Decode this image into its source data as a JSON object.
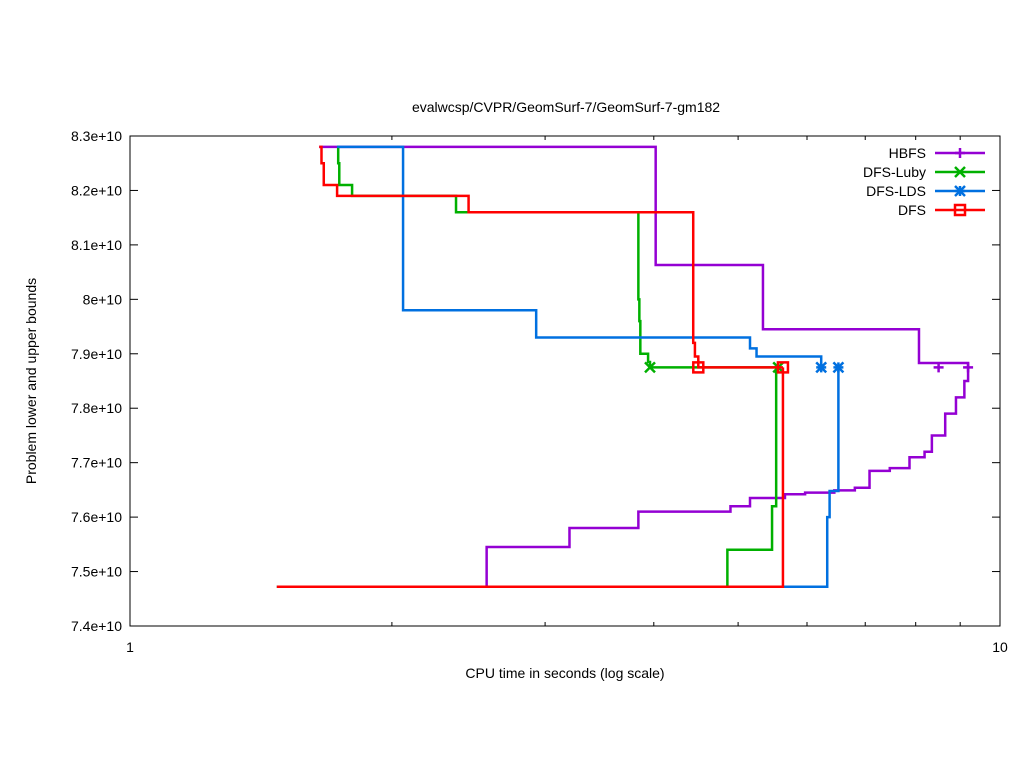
{
  "chart_data": {
    "type": "line",
    "title": "evalwcsp/CVPR/GeomSurf-7/GeomSurf-7-gm182",
    "xlabel": "CPU time in seconds (log scale)",
    "ylabel": "Problem lower and upper bounds",
    "xscale": "log",
    "xlim": [
      1,
      10
    ],
    "ylim": [
      74000000000.0,
      83000000000.0
    ],
    "xticks": [
      {
        "v": 1,
        "label": "1"
      },
      {
        "v": 10,
        "label": "10"
      }
    ],
    "yticks": [
      {
        "v": 74000000000.0,
        "label": "7.4e+10"
      },
      {
        "v": 75000000000.0,
        "label": "7.5e+10"
      },
      {
        "v": 76000000000.0,
        "label": "7.6e+10"
      },
      {
        "v": 77000000000.0,
        "label": "7.7e+10"
      },
      {
        "v": 78000000000.0,
        "label": "7.8e+10"
      },
      {
        "v": 79000000000.0,
        "label": "7.9e+10"
      },
      {
        "v": 80000000000.0,
        "label": "8e+10"
      },
      {
        "v": 81000000000.0,
        "label": "8.1e+10"
      },
      {
        "v": 82000000000.0,
        "label": "8.2e+10"
      },
      {
        "v": 83000000000.0,
        "label": "8.3e+10"
      }
    ],
    "grid": false,
    "legend_position": "top-right",
    "series": [
      {
        "name": "HBFS",
        "color": "#9400d3",
        "marker": "plus",
        "upper": [
          [
            1.65,
            82800000000.0
          ],
          [
            4.02,
            80630000000.0
          ],
          [
            5.34,
            79450000000.0
          ],
          [
            8.07,
            78830000000.0
          ],
          [
            9.19,
            78750000000.0
          ]
        ],
        "lower": [
          [
            2.57,
            74720000000.0
          ],
          [
            2.57,
            75450000000.0
          ],
          [
            3.2,
            75800000000.0
          ],
          [
            3.84,
            76100000000.0
          ],
          [
            4.9,
            76200000000.0
          ],
          [
            5.16,
            76350000000.0
          ],
          [
            5.66,
            76420000000.0
          ],
          [
            5.97,
            76450000000.0
          ],
          [
            6.45,
            76490000000.0
          ],
          [
            6.81,
            76540000000.0
          ],
          [
            7.08,
            76850000000.0
          ],
          [
            7.47,
            76900000000.0
          ],
          [
            7.87,
            77100000000.0
          ],
          [
            8.19,
            77200000000.0
          ],
          [
            8.35,
            77500000000.0
          ],
          [
            8.65,
            77900000000.0
          ],
          [
            8.9,
            78200000000.0
          ],
          [
            9.1,
            78500000000.0
          ],
          [
            9.19,
            78750000000.0
          ]
        ],
        "markers": [
          [
            8.5,
            78750000000.0
          ],
          [
            9.19,
            78750000000.0
          ]
        ]
      },
      {
        "name": "DFS-Luby",
        "color": "#00b000",
        "marker": "cross",
        "upper": [
          [
            1.73,
            82800000000.0
          ],
          [
            1.735,
            82500000000.0
          ],
          [
            1.74,
            82100000000.0
          ],
          [
            1.8,
            81900000000.0
          ],
          [
            2.37,
            81600000000.0
          ],
          [
            3.84,
            80000000000.0
          ],
          [
            3.85,
            79600000000.0
          ],
          [
            3.86,
            79000000000.0
          ],
          [
            3.94,
            78850000000.0
          ],
          [
            3.96,
            78750000000.0
          ],
          [
            5.53,
            78750000000.0
          ]
        ],
        "lower": [
          [
            1.475,
            74720000000.0
          ],
          [
            4.86,
            75400000000.0
          ],
          [
            5.47,
            76200000000.0
          ],
          [
            5.53,
            78750000000.0
          ]
        ],
        "markers": [
          [
            3.96,
            78750000000.0
          ],
          [
            5.56,
            78750000000.0
          ]
        ]
      },
      {
        "name": "DFS-LDS",
        "color": "#0070e0",
        "marker": "star",
        "upper": [
          [
            1.73,
            82800000000.0
          ],
          [
            2.06,
            79800000000.0
          ],
          [
            2.93,
            79300000000.0
          ],
          [
            5.16,
            79100000000.0
          ],
          [
            5.25,
            78950000000.0
          ],
          [
            6.23,
            78750000000.0
          ]
        ],
        "lower": [
          [
            1.475,
            74720000000.0
          ],
          [
            6.33,
            76000000000.0
          ],
          [
            6.37,
            76480000000.0
          ],
          [
            6.52,
            78750000000.0
          ]
        ],
        "markers": [
          [
            6.23,
            78750000000.0
          ],
          [
            6.52,
            78750000000.0
          ]
        ]
      },
      {
        "name": "DFS",
        "color": "#ff0000",
        "marker": "square",
        "upper": [
          [
            1.65,
            82800000000.0
          ],
          [
            1.66,
            82500000000.0
          ],
          [
            1.67,
            82100000000.0
          ],
          [
            1.73,
            81900000000.0
          ],
          [
            2.45,
            81600000000.0
          ],
          [
            4.44,
            79200000000.0
          ],
          [
            4.46,
            78950000000.0
          ],
          [
            4.5,
            78750000000.0
          ],
          [
            5.63,
            78750000000.0
          ]
        ],
        "lower": [
          [
            1.475,
            74720000000.0
          ],
          [
            5.63,
            78750000000.0
          ]
        ],
        "markers": [
          [
            4.5,
            78750000000.0
          ],
          [
            5.63,
            78750000000.0
          ]
        ]
      }
    ]
  }
}
